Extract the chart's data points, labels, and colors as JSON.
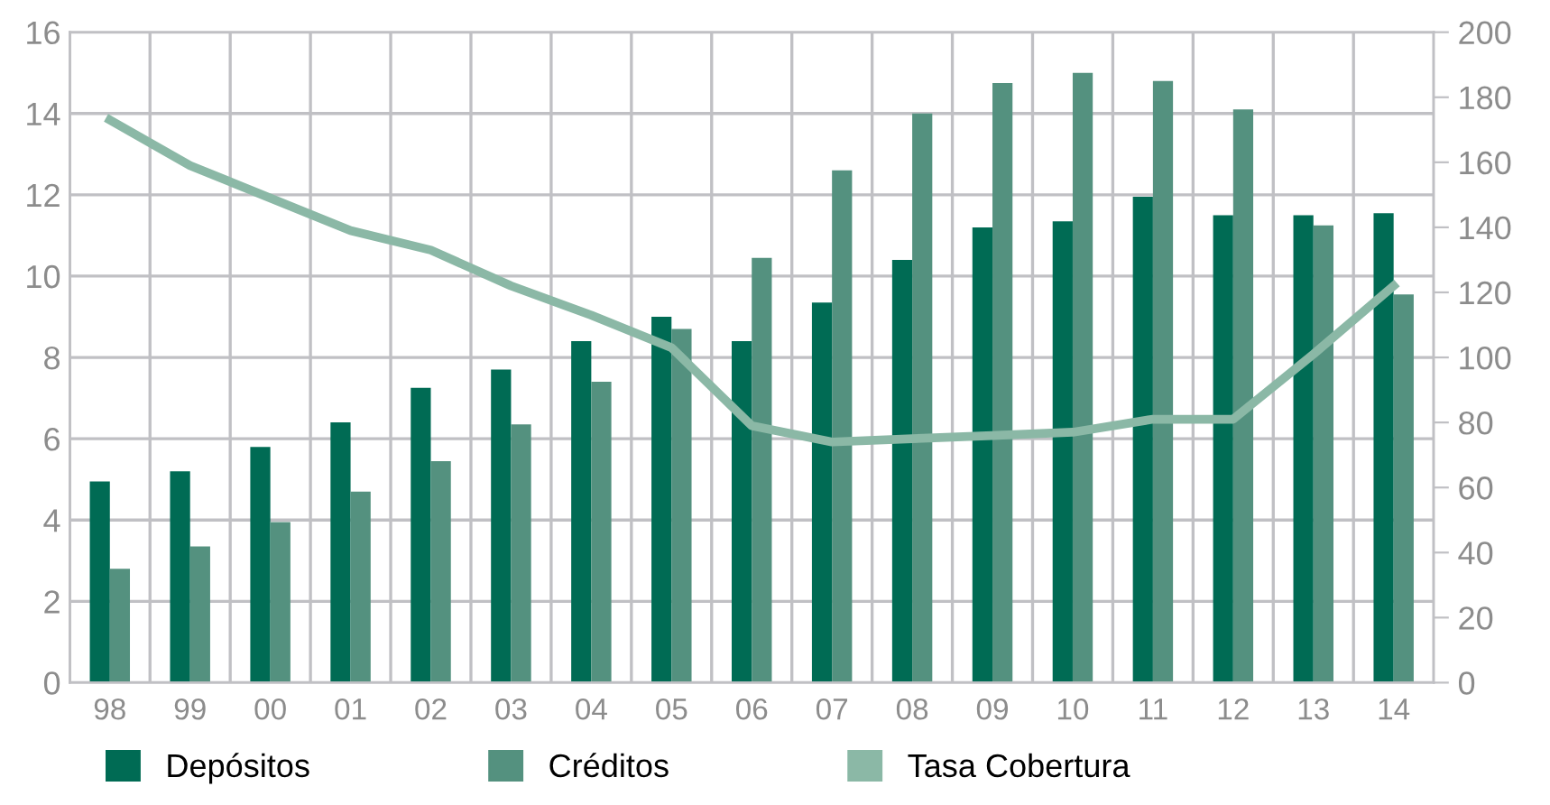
{
  "chart_data": {
    "type": "bar",
    "categories": [
      "98",
      "99",
      "00",
      "01",
      "02",
      "03",
      "04",
      "05",
      "06",
      "07",
      "08",
      "09",
      "10",
      "11",
      "12",
      "13",
      "14"
    ],
    "series": [
      {
        "name": "Depósitos",
        "color": "#006b54",
        "values": [
          4.95,
          5.2,
          5.8,
          6.4,
          7.25,
          7.7,
          8.4,
          9.0,
          8.4,
          9.35,
          10.4,
          11.2,
          11.35,
          11.95,
          11.5,
          11.5,
          11.55
        ]
      },
      {
        "name": "Créditos",
        "color": "#54917f",
        "values": [
          2.8,
          3.35,
          3.95,
          4.7,
          5.45,
          6.35,
          7.4,
          8.7,
          10.45,
          12.6,
          14.0,
          14.75,
          15.0,
          14.8,
          14.1,
          11.25,
          9.55
        ]
      },
      {
        "name": "Tasa Cobertura",
        "type": "line",
        "axis": "y2",
        "color": "#8bb8a6",
        "values": [
          173,
          159,
          149,
          139,
          133,
          122,
          113,
          103,
          79,
          74,
          75,
          76,
          77,
          81,
          81,
          101,
          122
        ]
      }
    ],
    "ylim": [
      0,
      16
    ],
    "yticks": [
      0,
      2,
      4,
      6,
      8,
      10,
      12,
      14,
      16
    ],
    "y2lim": [
      0,
      200
    ],
    "y2ticks": [
      0,
      20,
      40,
      60,
      80,
      100,
      120,
      140,
      160,
      180,
      200
    ],
    "grid": true,
    "legend": "bottom",
    "marker": "none",
    "line_style": "solid"
  }
}
